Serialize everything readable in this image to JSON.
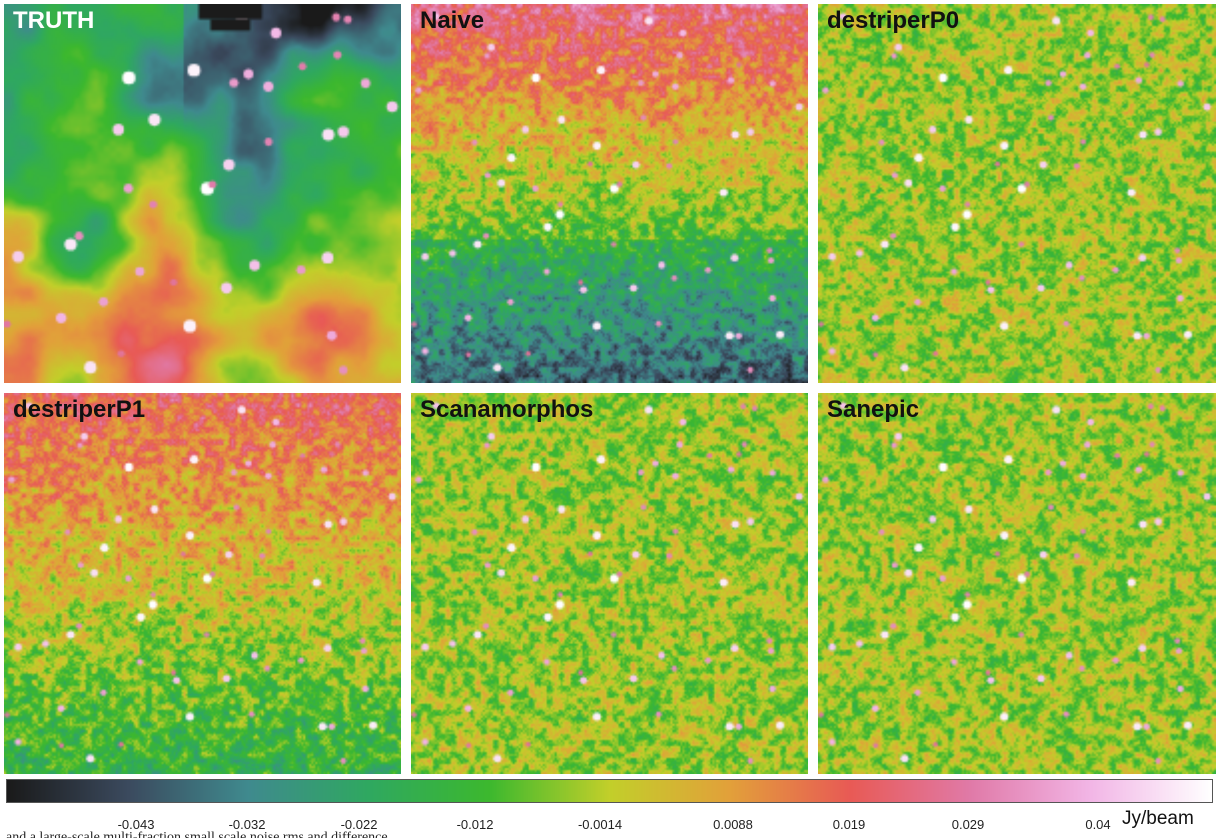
{
  "panels": [
    {
      "label": "TRUTH",
      "style": "truth"
    },
    {
      "label": "Naive",
      "style": "naive"
    },
    {
      "label": "destriperP0",
      "style": "flat"
    },
    {
      "label": "destriperP1",
      "style": "p1"
    },
    {
      "label": "Scanamorphos",
      "style": "flat"
    },
    {
      "label": "Sanepic",
      "style": "flat"
    }
  ],
  "colorbar": {
    "ticks": [
      "-0.043",
      "-0.032",
      "-0.022",
      "-0.012",
      "-0.0014",
      "0.0088",
      "0.019",
      "0.029",
      "0.04"
    ],
    "unit": "Jy/beam",
    "colors": [
      "#1a1a1a",
      "#3b4a5e",
      "#3f8a8e",
      "#2fa860",
      "#3cb82e",
      "#c2cf2a",
      "#e2a03a",
      "#e85a55",
      "#e07aa8",
      "#f2b6e6",
      "#ffffff"
    ]
  },
  "caption": "and a large-scale multi-fraction small scale noise rms and difference"
}
